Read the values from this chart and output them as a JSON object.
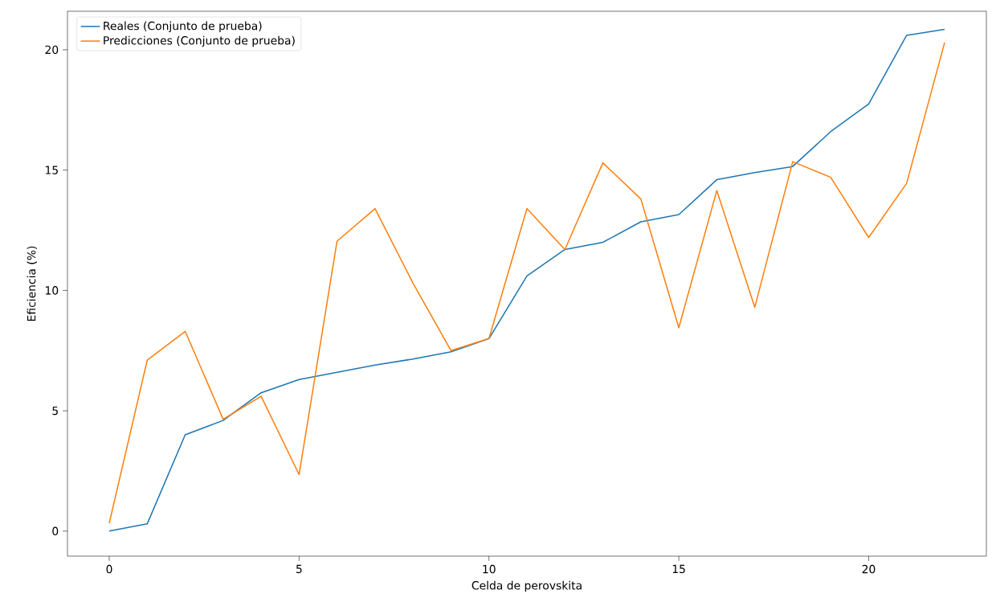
{
  "chart_data": {
    "type": "line",
    "xlabel": "Celda de perovskita",
    "ylabel": "Eficiencia (%)",
    "x": [
      0,
      1,
      2,
      3,
      4,
      5,
      6,
      7,
      8,
      9,
      10,
      11,
      12,
      13,
      14,
      15,
      16,
      17,
      18,
      19,
      20,
      21,
      22
    ],
    "series": [
      {
        "name": "Reales (Conjunto de prueba)",
        "color": "#1f77b4",
        "values": [
          0,
          0.3,
          4.0,
          4.6,
          5.75,
          6.3,
          6.6,
          6.9,
          7.15,
          7.45,
          8.0,
          10.6,
          11.7,
          12.0,
          12.85,
          13.15,
          14.6,
          14.9,
          15.15,
          16.6,
          17.75,
          20.6,
          20.85
        ]
      },
      {
        "name": "Predicciones (Conjunto de prueba)",
        "color": "#ff7f0e",
        "values": [
          0.33,
          7.1,
          8.3,
          4.65,
          5.6,
          2.35,
          12.05,
          13.4,
          10.3,
          7.5,
          8.0,
          13.4,
          11.7,
          15.3,
          13.8,
          8.45,
          14.15,
          9.3,
          15.35,
          14.7,
          12.2,
          14.45,
          20.3
        ]
      }
    ],
    "xlim": [
      -1.1,
      23.1
    ],
    "ylim": [
      -1.04,
      21.6
    ],
    "xticks": [
      0,
      5,
      10,
      15,
      20
    ],
    "yticks": [
      0,
      5,
      10,
      15,
      20
    ],
    "legend": "top left",
    "grid": false,
    "marker": "none",
    "line_style": "solid"
  }
}
